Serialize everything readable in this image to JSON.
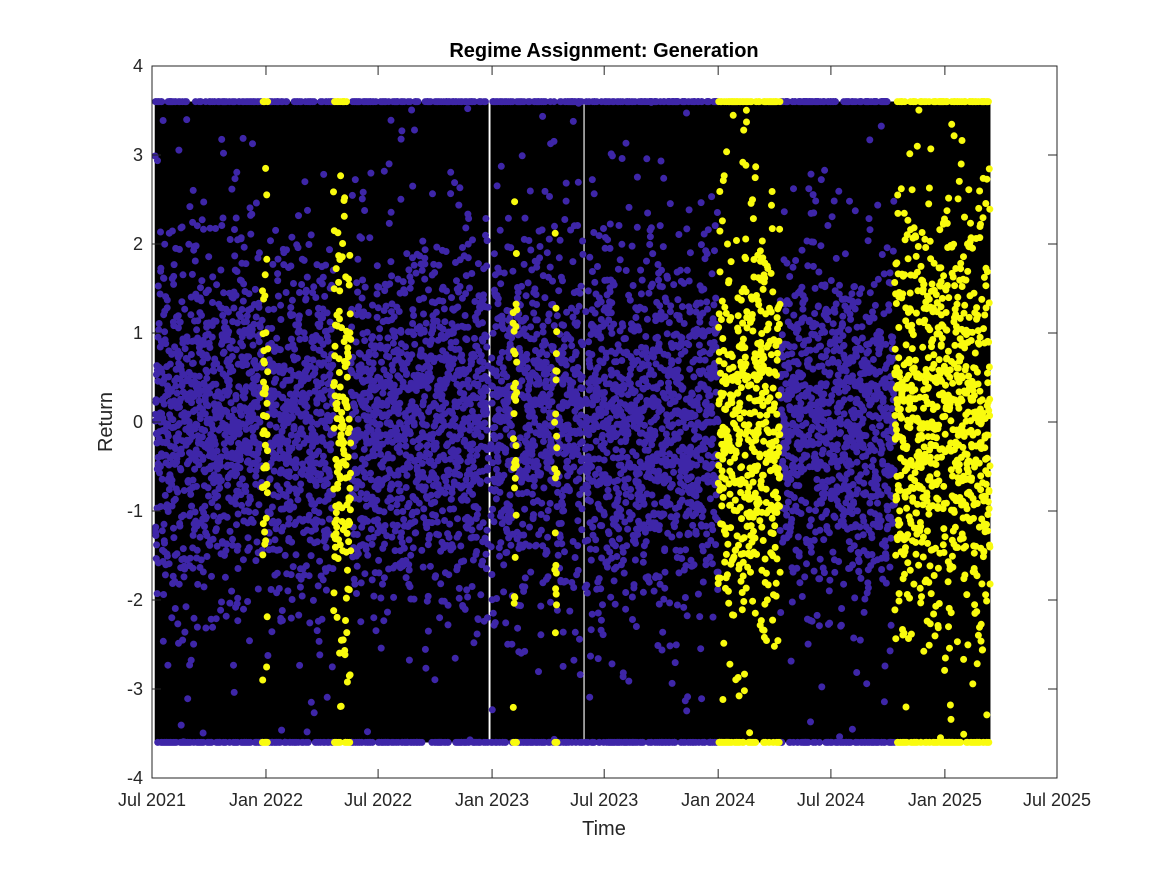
{
  "chart_data": {
    "type": "scatter",
    "title": "Regime Assignment: Generation",
    "xlabel": "Time",
    "ylabel": "Return",
    "xlim": [
      "2021-07-01",
      "2025-07-01"
    ],
    "ylim": [
      -4,
      4
    ],
    "x_tick_labels": [
      "Jul 2021",
      "Jan 2022",
      "Jul 2022",
      "Jan 2023",
      "Jul 2023",
      "Jan 2024",
      "Jul 2024",
      "Jan 2025",
      "Jul 2025"
    ],
    "y_tick_labels": [
      "-4",
      "-3",
      "-2",
      "-1",
      "0",
      "1",
      "2",
      "3",
      "4"
    ],
    "y_clip": [
      -3.6,
      3.6
    ],
    "data_range": [
      "2021-07-06",
      "2025-03-15"
    ],
    "grid": false,
    "legend": "none",
    "background_series": {
      "color": "#000000",
      "description": "return series drawn as thin black vertical lines"
    },
    "series": [
      {
        "regime": 1,
        "color": "#3E26A8"
      },
      {
        "regime": 2,
        "color": "#F9FB0E"
      }
    ],
    "regime_2_periods": [
      [
        "2021-12-26",
        "2022-01-04"
      ],
      [
        "2022-04-20",
        "2022-05-18"
      ],
      [
        "2023-02-04",
        "2023-02-10"
      ],
      [
        "2023-04-12",
        "2023-04-16"
      ],
      [
        "2024-01-01",
        "2024-04-10"
      ],
      [
        "2024-10-12",
        "2025-03-15"
      ]
    ],
    "gaps": [
      [
        "2022-12-26",
        "2022-12-30"
      ],
      [
        "2023-05-28",
        "2023-05-31"
      ]
    ]
  }
}
